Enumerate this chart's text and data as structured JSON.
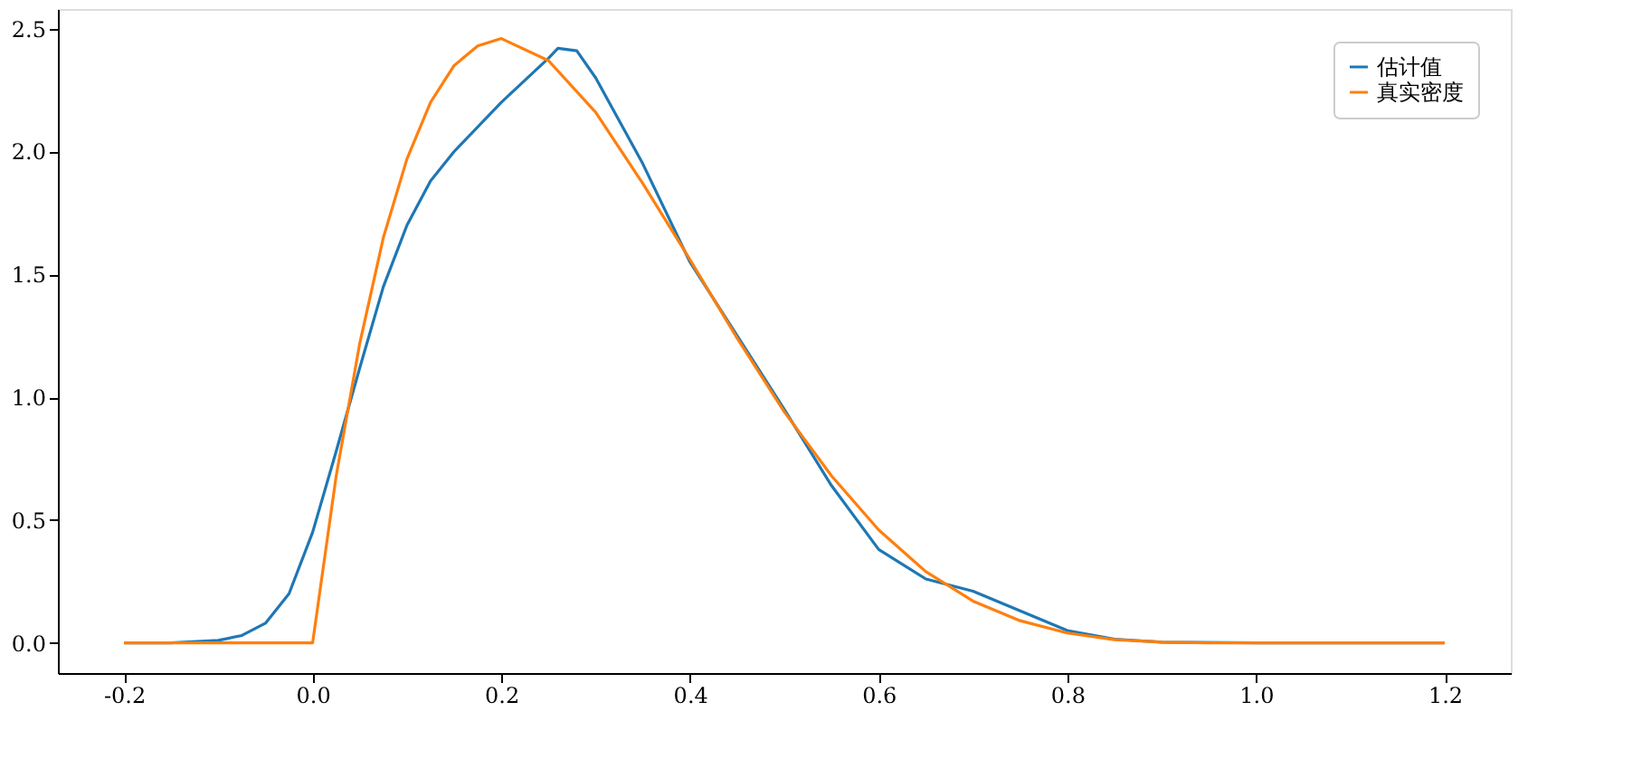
{
  "chart_data": {
    "type": "line",
    "xlim": [
      -0.27,
      1.27
    ],
    "ylim": [
      -0.123,
      2.58
    ],
    "xticks": [
      {
        "value": -0.2,
        "label": "-0.2"
      },
      {
        "value": 0,
        "label": "0.0"
      },
      {
        "value": 0.2,
        "label": "0.2"
      },
      {
        "value": 0.4,
        "label": "0.4"
      },
      {
        "value": 0.6,
        "label": "0.6"
      },
      {
        "value": 0.8,
        "label": "0.8"
      },
      {
        "value": 1,
        "label": "1.0"
      },
      {
        "value": 1.2,
        "label": "1.2"
      }
    ],
    "yticks": [
      {
        "value": 0,
        "label": "0.0"
      },
      {
        "value": 0.5,
        "label": "0.5"
      },
      {
        "value": 1,
        "label": "1.0"
      },
      {
        "value": 1.5,
        "label": "1.5"
      },
      {
        "value": 2,
        "label": "2.0"
      },
      {
        "value": 2.5,
        "label": "2.5"
      }
    ],
    "grid": false,
    "legend": "top right",
    "line_style": "solid",
    "marker": "none",
    "series": [
      {
        "name": "估计值",
        "color": "#1f77b4",
        "x": [
          -0.2,
          -0.15,
          -0.1,
          -0.075,
          -0.05,
          -0.025,
          0,
          0.025,
          0.05,
          0.075,
          0.1,
          0.125,
          0.15,
          0.2,
          0.25,
          0.26,
          0.28,
          0.3,
          0.35,
          0.4,
          0.45,
          0.5,
          0.55,
          0.6,
          0.65,
          0.7,
          0.75,
          0.8,
          0.85,
          0.9,
          1.0,
          1.2
        ],
        "values": [
          0,
          0,
          0.01,
          0.03,
          0.08,
          0.2,
          0.45,
          0.78,
          1.12,
          1.45,
          1.7,
          1.88,
          2.0,
          2.2,
          2.38,
          2.42,
          2.41,
          2.3,
          1.95,
          1.55,
          1.25,
          0.95,
          0.64,
          0.38,
          0.26,
          0.21,
          0.13,
          0.05,
          0.015,
          0.003,
          0,
          0
        ]
      },
      {
        "name": "真实密度",
        "color": "#ff7f0e",
        "x": [
          -0.2,
          0,
          0.025,
          0.05,
          0.075,
          0.1,
          0.125,
          0.15,
          0.175,
          0.2,
          0.25,
          0.3,
          0.35,
          0.4,
          0.45,
          0.5,
          0.55,
          0.6,
          0.65,
          0.7,
          0.75,
          0.8,
          0.85,
          0.9,
          0.95,
          1.0,
          1.2
        ],
        "values": [
          0,
          0,
          0.68,
          1.22,
          1.65,
          1.97,
          2.2,
          2.35,
          2.43,
          2.46,
          2.37,
          2.16,
          1.87,
          1.56,
          1.24,
          0.94,
          0.68,
          0.46,
          0.29,
          0.17,
          0.09,
          0.04,
          0.013,
          0.003,
          0,
          0,
          0
        ]
      }
    ]
  }
}
